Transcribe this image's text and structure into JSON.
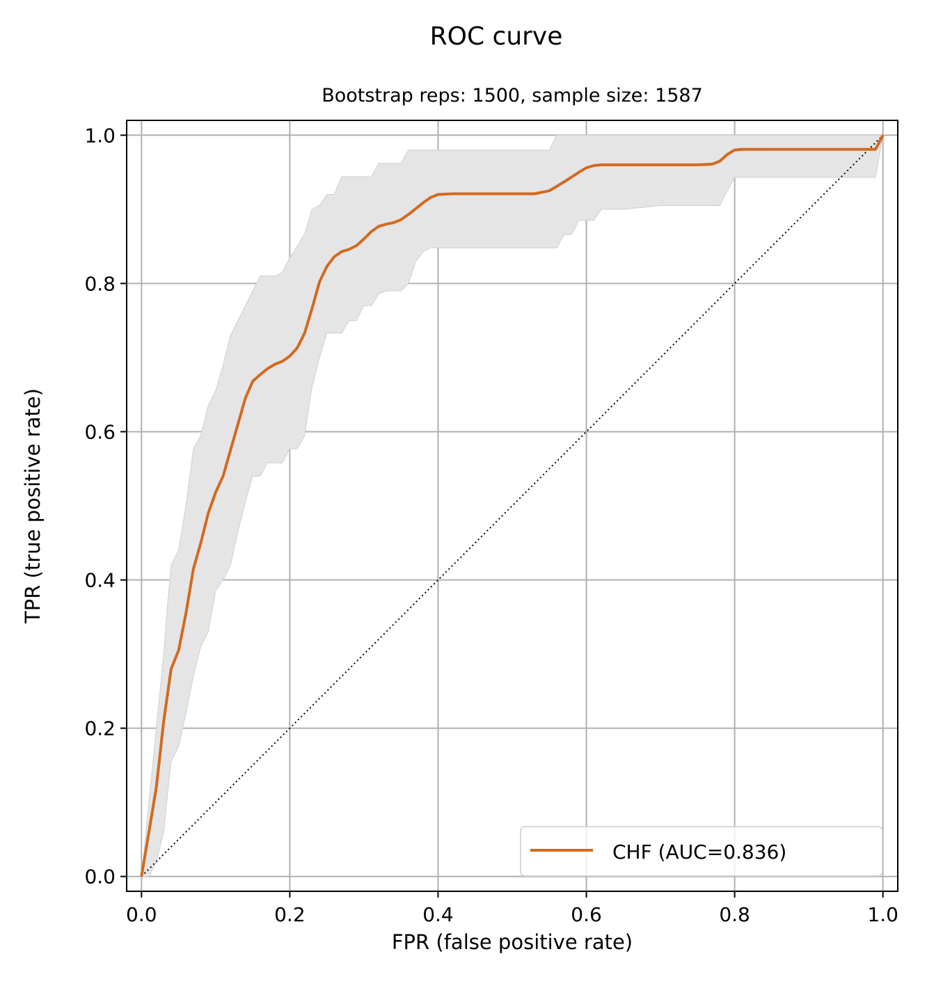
{
  "chart_data": {
    "type": "line",
    "title": "ROC curve",
    "subtitle": "Bootstrap reps: 1500, sample size: 1587",
    "xlabel": "FPR (false positive rate)",
    "ylabel": "TPR (true positive rate)",
    "xlim": [
      -0.02,
      1.02
    ],
    "ylim": [
      -0.02,
      1.02
    ],
    "xticks": [
      "0.0",
      "0.2",
      "0.4",
      "0.6",
      "0.8",
      "1.0"
    ],
    "yticks": [
      "0.0",
      "0.2",
      "0.4",
      "0.6",
      "0.8",
      "1.0"
    ],
    "grid": true,
    "legend_position": "lower-right",
    "colors": {
      "series": "#d2691e",
      "band": "#e5e5e5",
      "reference": "#000000",
      "grid": "#b0b0b0"
    },
    "series": [
      {
        "name": "CHF (AUC=0.836)",
        "x": [
          0,
          0.01,
          0.02,
          0.03,
          0.04,
          0.05,
          0.06,
          0.07,
          0.08,
          0.09,
          0.1,
          0.11,
          0.12,
          0.13,
          0.14,
          0.15,
          0.16,
          0.17,
          0.18,
          0.19,
          0.2,
          0.21,
          0.22,
          0.23,
          0.24,
          0.25,
          0.26,
          0.27,
          0.28,
          0.29,
          0.3,
          0.31,
          0.32,
          0.33,
          0.34,
          0.35,
          0.36,
          0.37,
          0.38,
          0.39,
          0.4,
          0.42,
          0.45,
          0.5,
          0.53,
          0.55,
          0.57,
          0.59,
          0.6,
          0.61,
          0.62,
          0.65,
          0.7,
          0.75,
          0.77,
          0.78,
          0.79,
          0.8,
          0.81,
          0.85,
          0.9,
          0.95,
          0.98,
          0.99,
          1.0
        ],
        "y": [
          0,
          0.06,
          0.12,
          0.21,
          0.28,
          0.305,
          0.355,
          0.415,
          0.45,
          0.49,
          0.518,
          0.54,
          0.575,
          0.61,
          0.645,
          0.668,
          0.677,
          0.685,
          0.691,
          0.695,
          0.702,
          0.713,
          0.733,
          0.766,
          0.802,
          0.823,
          0.836,
          0.843,
          0.846,
          0.851,
          0.86,
          0.87,
          0.877,
          0.88,
          0.882,
          0.886,
          0.893,
          0.901,
          0.909,
          0.916,
          0.92,
          0.921,
          0.921,
          0.921,
          0.921,
          0.925,
          0.937,
          0.95,
          0.956,
          0.959,
          0.96,
          0.96,
          0.96,
          0.96,
          0.961,
          0.965,
          0.974,
          0.98,
          0.981,
          0.981,
          0.981,
          0.981,
          0.981,
          0.981,
          1.0
        ]
      }
    ],
    "confidence_band": {
      "x": [
        0,
        0.01,
        0.02,
        0.03,
        0.035,
        0.04,
        0.05,
        0.06,
        0.07,
        0.08,
        0.09,
        0.1,
        0.11,
        0.12,
        0.13,
        0.14,
        0.15,
        0.16,
        0.17,
        0.18,
        0.19,
        0.2,
        0.21,
        0.22,
        0.23,
        0.24,
        0.25,
        0.26,
        0.27,
        0.28,
        0.29,
        0.3,
        0.31,
        0.32,
        0.33,
        0.34,
        0.35,
        0.36,
        0.37,
        0.38,
        0.39,
        0.4,
        0.45,
        0.5,
        0.55,
        0.56,
        0.57,
        0.58,
        0.59,
        0.6,
        0.61,
        0.62,
        0.65,
        0.7,
        0.75,
        0.78,
        0.79,
        0.8,
        0.85,
        0.9,
        0.95,
        0.99,
        1.0
      ],
      "lower": [
        0,
        0,
        0.02,
        0.06,
        0.11,
        0.155,
        0.175,
        0.22,
        0.27,
        0.31,
        0.33,
        0.385,
        0.4,
        0.42,
        0.465,
        0.505,
        0.54,
        0.54,
        0.558,
        0.558,
        0.558,
        0.577,
        0.577,
        0.595,
        0.66,
        0.7,
        0.733,
        0.733,
        0.733,
        0.75,
        0.75,
        0.77,
        0.77,
        0.786,
        0.79,
        0.79,
        0.79,
        0.8,
        0.83,
        0.843,
        0.848,
        0.848,
        0.848,
        0.848,
        0.848,
        0.848,
        0.866,
        0.866,
        0.885,
        0.885,
        0.885,
        0.9,
        0.9,
        0.905,
        0.905,
        0.905,
        0.925,
        0.943,
        0.943,
        0.943,
        0.943,
        0.943,
        1.0
      ],
      "upper": [
        0,
        0.1,
        0.2,
        0.3,
        0.365,
        0.42,
        0.44,
        0.5,
        0.577,
        0.595,
        0.635,
        0.655,
        0.69,
        0.73,
        0.75,
        0.77,
        0.79,
        0.81,
        0.81,
        0.81,
        0.815,
        0.835,
        0.85,
        0.867,
        0.9,
        0.905,
        0.92,
        0.92,
        0.944,
        0.944,
        0.944,
        0.944,
        0.944,
        0.962,
        0.962,
        0.962,
        0.962,
        0.98,
        0.98,
        0.98,
        0.98,
        0.98,
        0.98,
        0.98,
        0.98,
        1.0,
        1.0,
        1.0,
        1.0,
        1.0,
        1.0,
        1.0,
        1.0,
        1.0,
        1.0,
        1.0,
        1.0,
        1.0,
        1.0,
        1.0,
        1.0,
        1.0,
        1.0
      ]
    },
    "reference_line": {
      "x": [
        0,
        1
      ],
      "y": [
        0,
        1
      ],
      "style": "dotted"
    }
  }
}
